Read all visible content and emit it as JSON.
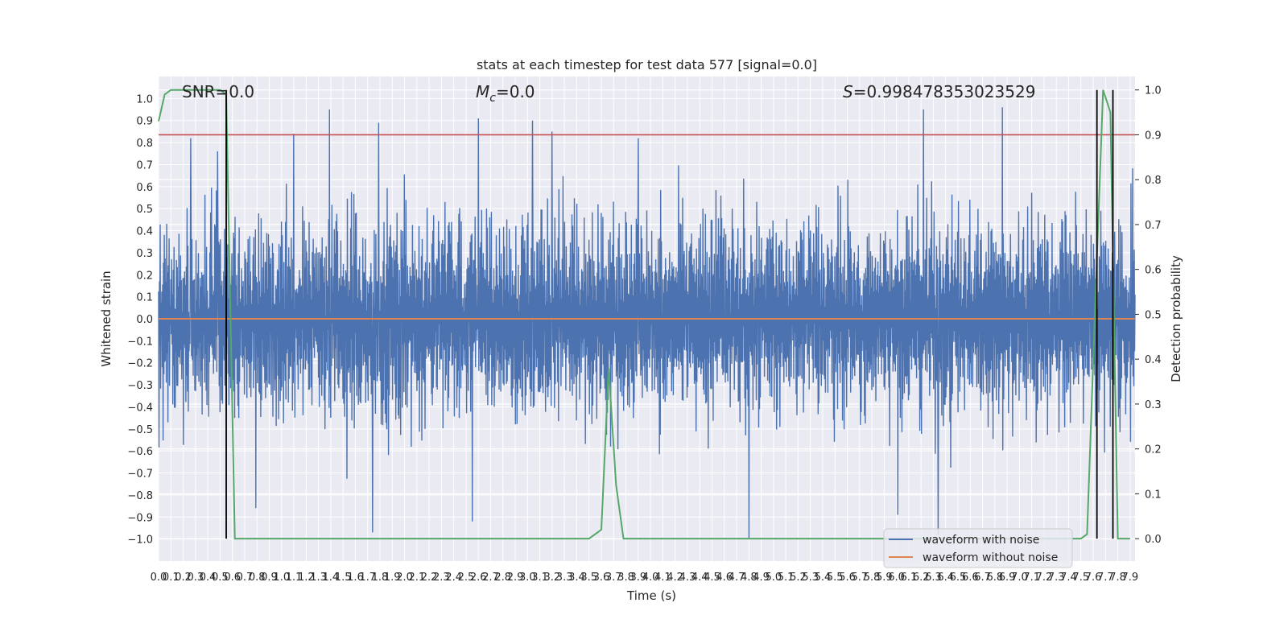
{
  "chart_data": {
    "type": "line",
    "title": "stats at each timestep for test data 577 [signal=0.0]",
    "xlabel": "Time (s)",
    "ylabel": "Whitened strain",
    "y2label": "Detection probability",
    "xlim": [
      0,
      7.94
    ],
    "ylim": [
      -1.1,
      1.1
    ],
    "y2lim": [
      -0.05,
      1.03
    ],
    "x_ticks": [
      0.0,
      0.1,
      0.2,
      0.3,
      0.4,
      0.5,
      0.6,
      0.7,
      0.8,
      0.9,
      1.0,
      1.1,
      1.2,
      1.3,
      1.4,
      1.5,
      1.6,
      1.7,
      1.8,
      1.9,
      2.0,
      2.1,
      2.2,
      2.3,
      2.4,
      2.5,
      2.6,
      2.7,
      2.8,
      2.9,
      3.0,
      3.1,
      3.2,
      3.3,
      3.4,
      3.5,
      3.6,
      3.7,
      3.8,
      3.9,
      4.0,
      4.1,
      4.2,
      4.3,
      4.4,
      4.5,
      4.6,
      4.7,
      4.8,
      4.9,
      5.0,
      5.1,
      5.2,
      5.3,
      5.4,
      5.5,
      5.6,
      5.7,
      5.8,
      5.9,
      6.0,
      6.1,
      6.2,
      6.3,
      6.4,
      6.5,
      6.6,
      6.7,
      6.8,
      6.9,
      7.0,
      7.1,
      7.2,
      7.3,
      7.4,
      7.5,
      7.6,
      7.7,
      7.8,
      7.9
    ],
    "y_ticks": [
      -1.0,
      -0.9,
      -0.8,
      -0.7,
      -0.6,
      -0.5,
      -0.4,
      -0.3,
      -0.2,
      -0.1,
      0.0,
      0.1,
      0.2,
      0.3,
      0.4,
      0.5,
      0.6,
      0.7,
      0.8,
      0.9,
      1.0
    ],
    "y2_ticks": [
      0.0,
      0.1,
      0.2,
      0.3,
      0.4,
      0.5,
      0.6,
      0.7,
      0.8,
      0.9,
      1.0
    ],
    "grid": true,
    "annotations": [
      {
        "text": "SNR=0.0",
        "x": 0.2,
        "y": 1.0
      },
      {
        "text": "M_c=0.0",
        "x": 2.6,
        "y": 1.0
      },
      {
        "text": "S=0.998478353023529",
        "x": 5.5,
        "y": 1.0
      }
    ],
    "series": [
      {
        "name": "waveform with noise",
        "color": "#4c72b0",
        "description": "dense noise trace",
        "amplitude_envelope": {
          "typical_max": 0.45,
          "typical_min": -0.45
        },
        "peaks": [
          {
            "x": 0.26,
            "y": 0.82
          },
          {
            "x": 0.48,
            "y": 0.76
          },
          {
            "x": 1.1,
            "y": 0.84
          },
          {
            "x": 1.39,
            "y": 0.95
          },
          {
            "x": 1.79,
            "y": 0.89
          },
          {
            "x": 2.6,
            "y": 0.91
          },
          {
            "x": 3.04,
            "y": 0.9
          },
          {
            "x": 3.2,
            "y": 0.85
          },
          {
            "x": 3.9,
            "y": 0.82
          },
          {
            "x": 6.22,
            "y": 0.95
          },
          {
            "x": 6.86,
            "y": 0.96
          },
          {
            "x": 1.74,
            "y": -0.97
          },
          {
            "x": 2.55,
            "y": -0.92
          },
          {
            "x": 4.8,
            "y": -1.0
          },
          {
            "x": 6.01,
            "y": -0.89
          },
          {
            "x": 6.34,
            "y": -0.98
          },
          {
            "x": 0.79,
            "y": -0.86
          }
        ]
      },
      {
        "name": "waveform without noise",
        "color": "#dd8452",
        "y_const": 0.0
      },
      {
        "name": "detection probability",
        "color": "#55a868",
        "axis": "right",
        "x": [
          0.0,
          0.05,
          0.1,
          0.2,
          0.3,
          0.4,
          0.5,
          0.55,
          0.62,
          0.95,
          1.5,
          2.5,
          3.5,
          3.6,
          3.66,
          3.72,
          3.78,
          3.85,
          3.9,
          4.5,
          5.5,
          6.5,
          7.4,
          7.5,
          7.55,
          7.62,
          7.68,
          7.74,
          7.8,
          7.85,
          7.9
        ],
        "y": [
          0.93,
          0.99,
          1.0,
          1.0,
          1.0,
          1.0,
          1.0,
          0.99,
          0.0,
          0.0,
          0.0,
          0.0,
          0.0,
          0.02,
          0.38,
          0.12,
          0.0,
          0.0,
          0.0,
          0.0,
          0.0,
          0.0,
          0.0,
          0.0,
          0.01,
          0.55,
          1.0,
          0.95,
          0.0,
          0.0,
          0.0
        ]
      },
      {
        "name": "threshold",
        "color": "#c44e52",
        "axis": "right",
        "y_const": 0.9
      }
    ],
    "vlines": [
      0.55,
      7.63,
      7.76
    ],
    "legend": {
      "placement": "lower-right",
      "entries": [
        "waveform with noise",
        "waveform without noise"
      ]
    }
  }
}
